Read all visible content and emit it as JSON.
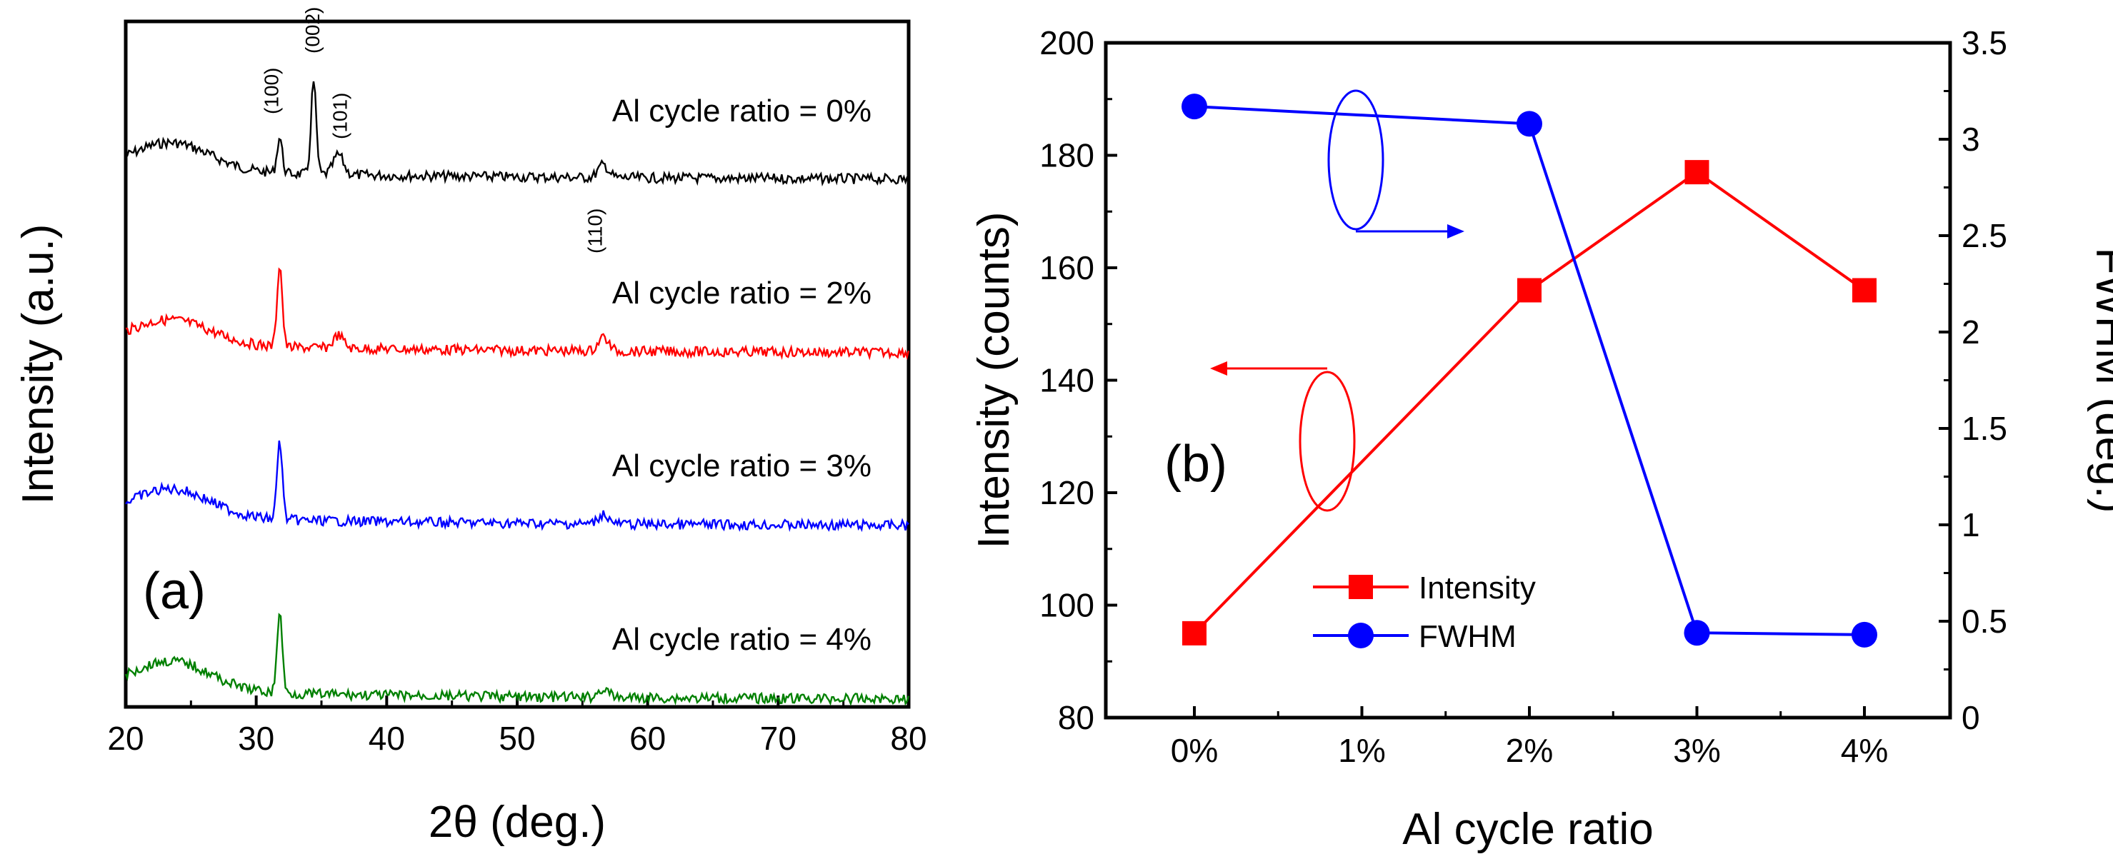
{
  "chart_data": [
    {
      "panel_label": "(a)",
      "type": "line",
      "xlabel": "2θ (deg.)",
      "ylabel": "Intensity (a.u.)",
      "xlim": [
        20,
        80
      ],
      "xticks": [
        "20",
        "30",
        "40",
        "50",
        "60",
        "70",
        "80"
      ],
      "yticks_shown": false,
      "peaks": [
        {
          "label": "(100)",
          "x": 31.8
        },
        {
          "label": "(002)",
          "x": 34.4
        },
        {
          "label": "(101)",
          "x": 36.3
        },
        {
          "label": "(110)",
          "x": 56.6
        }
      ],
      "series": [
        {
          "name": "Al cycle ratio = 0%",
          "color": "#000000",
          "peak_x": [
            31.8,
            34.4,
            36.3,
            56.6
          ],
          "peak_rel": [
            0.35,
            0.9,
            0.2,
            0.15
          ]
        },
        {
          "name": "Al cycle ratio = 2%",
          "color": "#ff0000",
          "peak_x": [
            31.8,
            36.3,
            56.6
          ],
          "peak_rel": [
            1.0,
            0.15,
            0.25
          ]
        },
        {
          "name": "Al cycle ratio = 3%",
          "color": "#0000ff",
          "peak_x": [
            31.8,
            56.6
          ],
          "peak_rel": [
            1.0,
            0.12
          ]
        },
        {
          "name": "Al cycle ratio = 4%",
          "color": "#008000",
          "peak_x": [
            31.8,
            56.6
          ],
          "peak_rel": [
            1.0,
            0.1
          ]
        }
      ]
    },
    {
      "panel_label": "(b)",
      "type": "line",
      "categories": [
        "0%",
        "1%",
        "2%",
        "3%",
        "4%"
      ],
      "xlabel": "Al cycle ratio",
      "ylabel_left": "Intensity (counts)",
      "ylabel_right": "FWHM (deg.)",
      "ylim_left": [
        80,
        200
      ],
      "yticks_left": [
        "80",
        "100",
        "120",
        "140",
        "160",
        "180",
        "200"
      ],
      "ylim_right": [
        0,
        3.5
      ],
      "yticks_right": [
        "0",
        "0.5",
        "1",
        "1.5",
        "2",
        "2.5",
        "3",
        "3.5"
      ],
      "legend_position": "lower-center",
      "series": [
        {
          "name": "Intensity",
          "axis": "left",
          "color": "#ff0000",
          "marker": "square",
          "x": [
            "0%",
            "2%",
            "3%",
            "4%"
          ],
          "values": [
            95,
            156,
            177,
            156
          ]
        },
        {
          "name": "FWHM",
          "axis": "right",
          "color": "#0000ff",
          "marker": "circle",
          "x": [
            "0%",
            "2%",
            "3%",
            "4%"
          ],
          "values": [
            3.17,
            3.08,
            0.44,
            0.43
          ]
        }
      ]
    }
  ]
}
